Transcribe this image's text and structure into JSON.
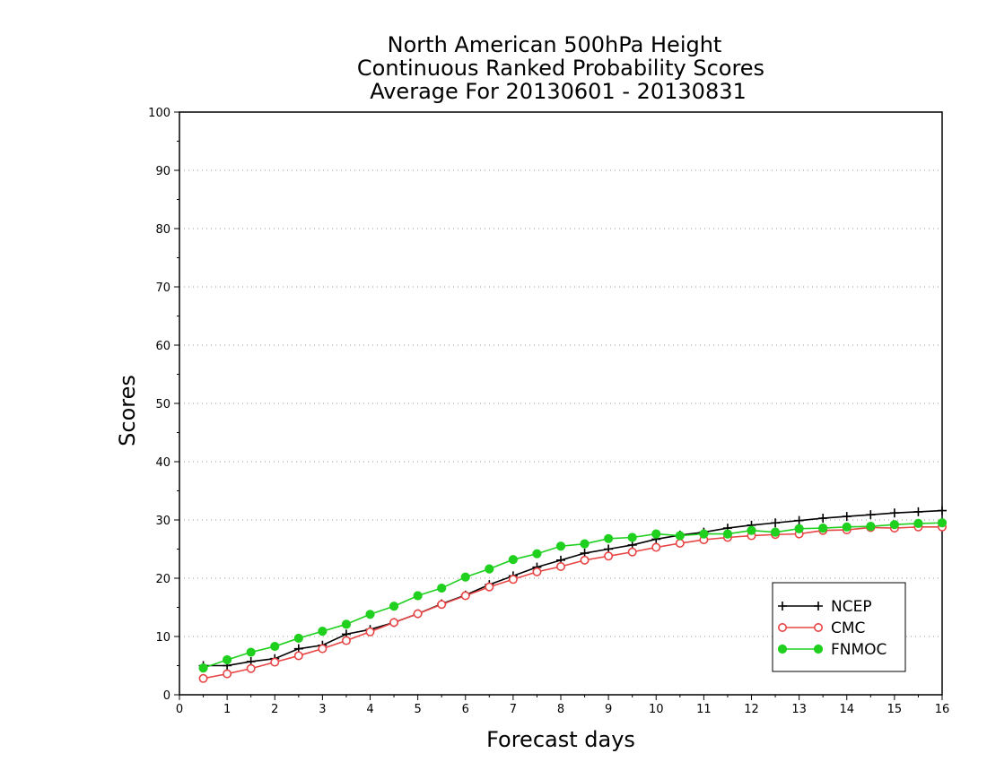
{
  "chart_data": {
    "type": "line",
    "title": [
      "North American 500hPa Height",
      "Continuous Ranked Probability Scores",
      "Average For 20130601 - 20130831"
    ],
    "xlabel": "Forecast days",
    "ylabel": "Scores",
    "xlim": [
      0,
      16
    ],
    "ylim": [
      0,
      100
    ],
    "x_ticks": [
      "0",
      "1",
      "2",
      "3",
      "4",
      "5",
      "6",
      "7",
      "8",
      "9",
      "10",
      "11",
      "12",
      "13",
      "14",
      "15",
      "16"
    ],
    "y_ticks": [
      "0",
      "10",
      "20",
      "30",
      "40",
      "50",
      "60",
      "70",
      "80",
      "90",
      "100"
    ],
    "grid": "horizontal dotted",
    "legend_position": "bottom-right",
    "x": [
      0.5,
      1,
      1.5,
      2,
      2.5,
      3,
      3.5,
      4,
      4.5,
      5,
      5.5,
      6,
      6.5,
      7,
      7.5,
      8,
      8.5,
      9,
      9.5,
      10,
      10.5,
      11,
      11.5,
      12,
      12.5,
      13,
      13.5,
      14,
      14.5,
      15,
      15.5,
      16
    ],
    "series": [
      {
        "name": "NCEP",
        "color": "#000000",
        "marker": "plus",
        "values": [
          5.0,
          5.0,
          5.7,
          6.2,
          7.9,
          8.5,
          10.4,
          11.2,
          12.4,
          13.9,
          15.6,
          17.1,
          18.9,
          20.4,
          21.9,
          23.1,
          24.3,
          25.0,
          25.7,
          26.7,
          27.4,
          27.9,
          28.6,
          29.1,
          29.5,
          29.9,
          30.3,
          30.6,
          30.9,
          31.2,
          31.4,
          31.6
        ]
      },
      {
        "name": "CMC",
        "color": "#e84545",
        "marker": "open-circle",
        "values": [
          2.8,
          3.6,
          4.5,
          5.6,
          6.7,
          7.9,
          9.3,
          10.8,
          12.4,
          13.9,
          15.5,
          17.0,
          18.5,
          19.8,
          21.1,
          22.0,
          23.1,
          23.8,
          24.5,
          25.3,
          26.0,
          26.6,
          27.0,
          27.3,
          27.5,
          27.6,
          28.2,
          28.3,
          28.7,
          28.6,
          28.8,
          28.8
        ]
      },
      {
        "name": "FNMOC",
        "color": "#1fd01f",
        "marker": "filled-circle",
        "values": [
          4.6,
          6.0,
          7.3,
          8.3,
          9.7,
          10.9,
          12.1,
          13.8,
          15.2,
          17.0,
          18.3,
          20.2,
          21.6,
          23.2,
          24.2,
          25.5,
          25.9,
          26.8,
          27.0,
          27.6,
          27.3,
          27.6,
          27.6,
          28.2,
          27.9,
          28.5,
          28.6,
          28.8,
          28.9,
          29.2,
          29.4,
          29.5
        ]
      }
    ]
  }
}
